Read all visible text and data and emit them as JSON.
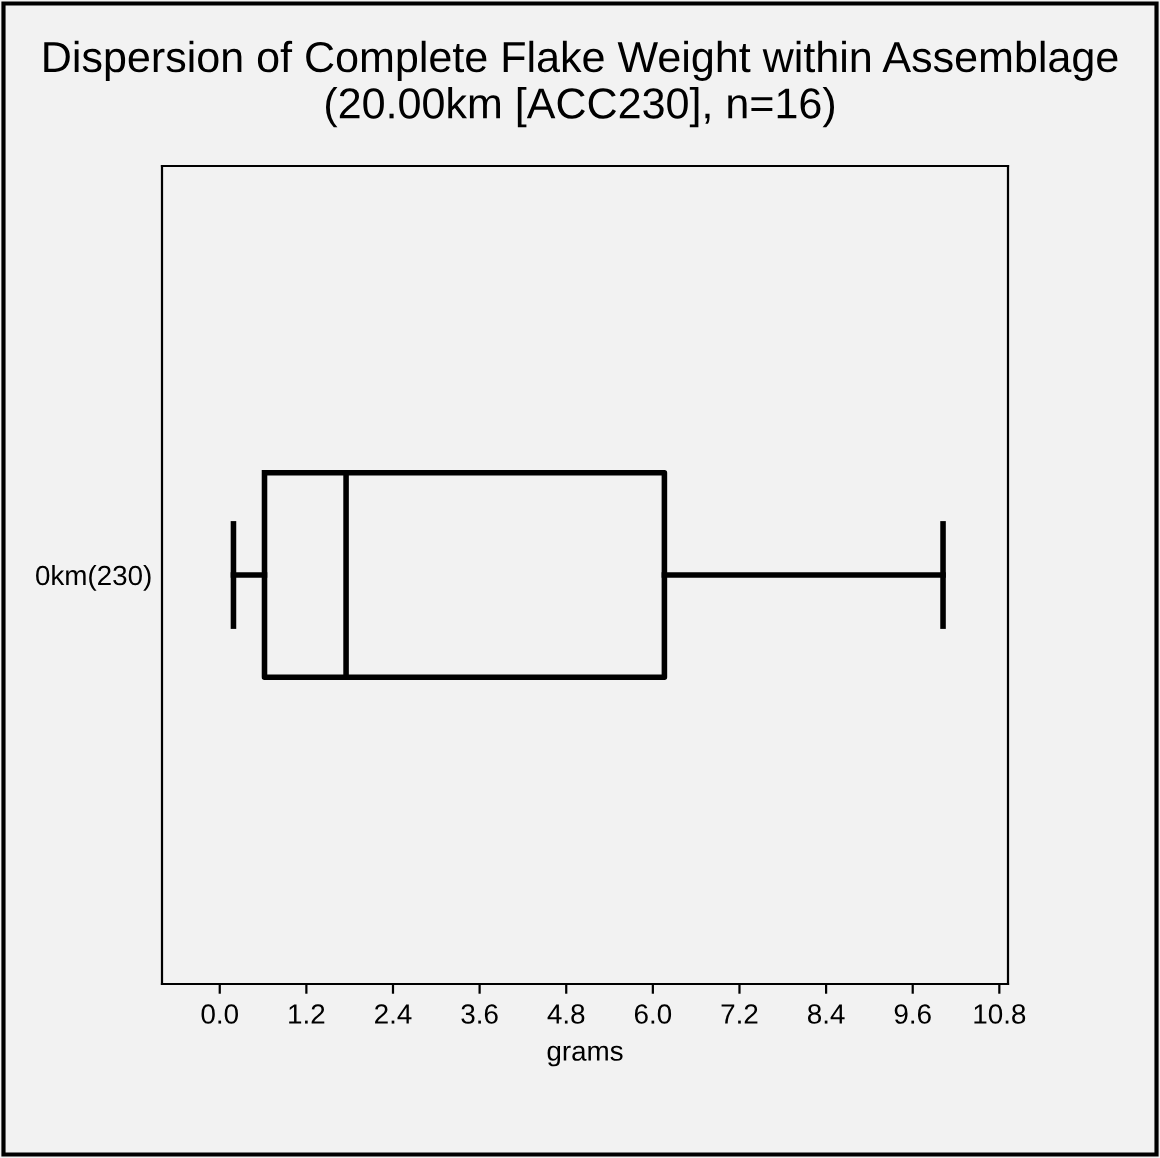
{
  "chart_data": {
    "type": "box",
    "orientation": "horizontal",
    "title": "Dispersion of Complete Flake Weight within Assemblage (20.00km [ACC230], n=16)",
    "xlabel": "grams",
    "categories": [
      "0km(230)"
    ],
    "boxes": [
      {
        "low": 0.19,
        "q1": 0.62,
        "median": 1.75,
        "q3": 6.16,
        "high": 10.02
      }
    ],
    "xlim": [
      -0.8,
      10.92
    ],
    "xticks": [
      "0.0",
      1.2,
      2.4,
      3.6,
      4.8,
      "6.0",
      7.2,
      8.4,
      9.6,
      10.8
    ],
    "grid": false,
    "legend": false
  }
}
